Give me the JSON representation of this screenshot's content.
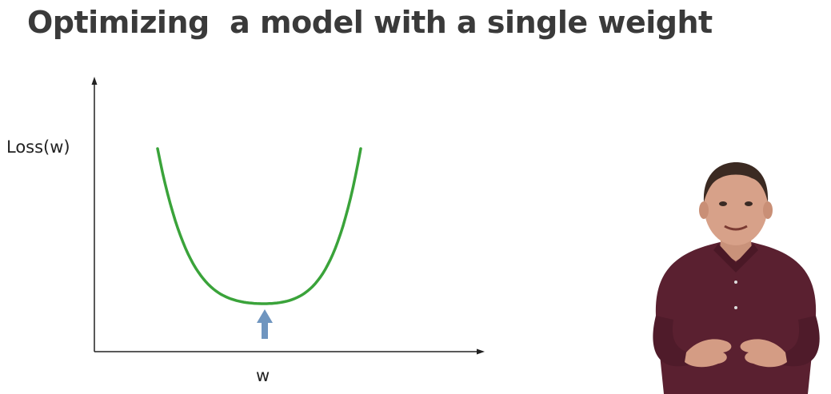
{
  "slide": {
    "title": "Optimizing  a model with a single weight"
  },
  "chart_data": {
    "type": "line",
    "xlabel": "w",
    "ylabel": "Loss(w)",
    "curve_shape": "convex U-shaped loss curve with a single minimum",
    "curve_color": "#3aa33a",
    "minimum_marker": "upward arrow pointing at the curve minimum",
    "marker_color": "#6f95bf"
  },
  "presenter": {
    "description": "presenter video overlay, man in dark maroon shirt gesturing with both hands",
    "shirt_color": "#5a2030"
  }
}
